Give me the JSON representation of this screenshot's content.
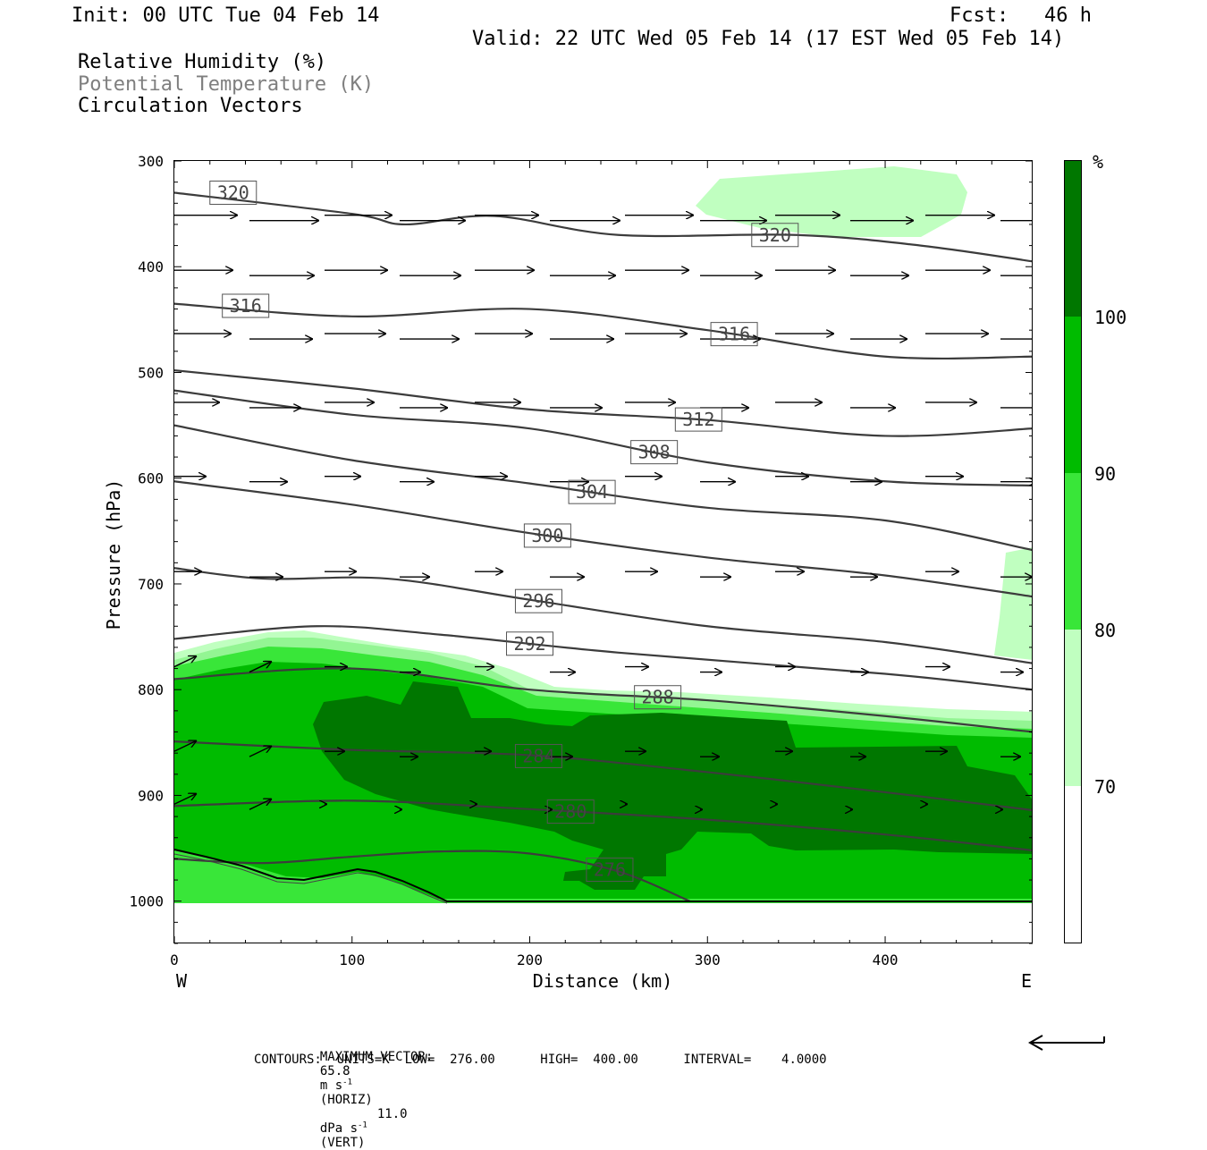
{
  "header": {
    "init": "Init: 00 UTC Tue 04 Feb 14",
    "fcst": "Fcst:   46 h",
    "valid": "Valid: 22 UTC Wed 05 Feb 14 (17 EST Wed 05 Feb 14)",
    "field1": "Relative Humidity (%)",
    "field2": "Potential Temperature (K)",
    "field3": "Circulation Vectors"
  },
  "colors": {
    "rh70": "#c0ffc0",
    "rh80": "#93f593",
    "rh90": "#39e639",
    "rh100": "#00bb00",
    "rhMax": "#007700",
    "theta": "#3c3c3c",
    "terrain": "#000000"
  },
  "chart_data": {
    "type": "cross-section",
    "xlabel": "Distance (km)",
    "ylabel": "Pressure (hPa)",
    "xlim": [
      0,
      483
    ],
    "ylim": [
      1040,
      300
    ],
    "x_ticks": [
      "0",
      "100",
      "200",
      "300",
      "400"
    ],
    "y_ticks": [
      "300",
      "400",
      "500",
      "600",
      "700",
      "800",
      "900",
      "1000"
    ],
    "x_left_label": "W",
    "x_right_label": "E",
    "colorbar": {
      "unit": "%",
      "levels": [
        "70",
        "80",
        "90",
        "100"
      ]
    },
    "theta_contours": [
      {
        "value": 276,
        "label": "276",
        "km": [
          0,
          50,
          100,
          150,
          200,
          250,
          290
        ],
        "hPa": [
          960,
          964,
          958,
          953,
          955,
          972,
          1000
        ]
      },
      {
        "value": 280,
        "label": "280",
        "km": [
          0,
          100,
          200,
          300,
          400,
          483
        ],
        "hPa": [
          910,
          905,
          913,
          923,
          937,
          952
        ]
      },
      {
        "value": 284,
        "label": "284",
        "km": [
          0,
          100,
          200,
          300,
          400,
          483
        ],
        "hPa": [
          849,
          857,
          862,
          878,
          897,
          914
        ]
      },
      {
        "value": 288,
        "label": "288",
        "km": [
          0,
          100,
          200,
          300,
          400,
          483
        ],
        "hPa": [
          790,
          780,
          800,
          810,
          825,
          840
        ]
      },
      {
        "value": 292,
        "label": "292",
        "km": [
          0,
          80,
          150,
          250,
          400,
          483
        ],
        "hPa": [
          752,
          740,
          748,
          765,
          785,
          800
        ]
      },
      {
        "value": 296,
        "label": "296",
        "km": [
          0,
          50,
          120,
          200,
          300,
          400,
          483
        ],
        "hPa": [
          685,
          695,
          695,
          715,
          740,
          755,
          775
        ]
      },
      {
        "value": 300,
        "label": "300",
        "km": [
          0,
          100,
          200,
          300,
          400,
          483
        ],
        "hPa": [
          603,
          625,
          652,
          675,
          692,
          712
        ]
      },
      {
        "value": 304,
        "label": "304",
        "km": [
          0,
          100,
          200,
          300,
          400,
          483
        ],
        "hPa": [
          550,
          583,
          605,
          628,
          640,
          668
        ]
      },
      {
        "value": 308,
        "label": "308",
        "km": [
          0,
          100,
          200,
          300,
          400,
          483
        ],
        "hPa": [
          517,
          540,
          553,
          585,
          603,
          607
        ]
      },
      {
        "value": 312,
        "label": "312",
        "km": [
          0,
          100,
          200,
          300,
          400,
          483
        ],
        "hPa": [
          498,
          515,
          535,
          545,
          560,
          553
        ]
      },
      {
        "value": 316,
        "label": "316",
        "km": [
          0,
          100,
          200,
          300,
          400,
          483
        ],
        "hPa": [
          435,
          447,
          440,
          460,
          485,
          485
        ]
      },
      {
        "value": 320,
        "label": "320",
        "km": [
          0,
          100,
          130,
          180,
          250,
          350,
          420,
          483
        ],
        "hPa": [
          330,
          350,
          360,
          352,
          370,
          370,
          380,
          395
        ]
      }
    ],
    "vector_rows_hPa": [
      353,
      405,
      465,
      530,
      600,
      690,
      780,
      860,
      910
    ],
    "max_vector_text": {
      "label": "MAXIMUM VECTOR:",
      "horiz_value": "65.8",
      "horiz_unit": "m s",
      "horiz_exp": "-1",
      "horiz_tag": "(HORIZ)",
      "vert_value": "11.0",
      "vert_unit": "dPa s",
      "vert_exp": "-1",
      "vert_tag": "(VERT)"
    },
    "contours_text": "CONTOURS:  UNITS=K  LOW=  276.00      HIGH=  400.00      INTERVAL=    4.0000"
  }
}
